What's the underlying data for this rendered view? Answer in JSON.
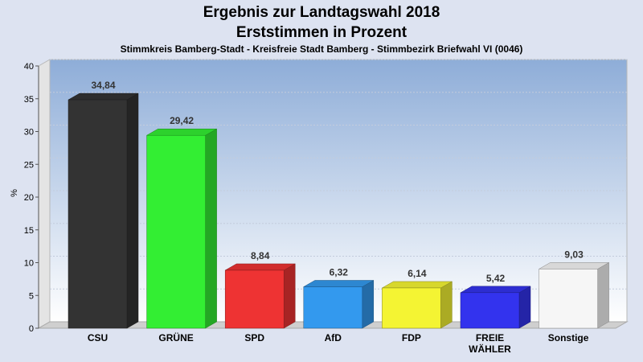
{
  "title_line1": "Ergebnis zur Landtagswahl 2018",
  "title_line2": "Erststimmen in Prozent",
  "subtitle": "Stimmkreis Bamberg-Stadt - Kreisfreie Stadt Bamberg - Stimmbezirk Briefwahl VI (0046)",
  "chart_data": {
    "type": "bar",
    "title": "Ergebnis zur Landtagswahl 2018 - Erststimmen in Prozent",
    "subtitle": "Stimmkreis Bamberg-Stadt - Kreisfreie Stadt Bamberg - Stimmbezirk Briefwahl VI (0046)",
    "ylabel": "%",
    "xlabel": "",
    "ylim": [
      0,
      40
    ],
    "yticks": [
      0,
      5,
      10,
      15,
      20,
      25,
      30,
      35,
      40
    ],
    "grid": true,
    "categories": [
      "CSU",
      "GRÜNE",
      "SPD",
      "AfD",
      "FDP",
      "FREIE WÄHLER",
      "Sonstige"
    ],
    "category_labels": [
      [
        "CSU"
      ],
      [
        "GRÜNE"
      ],
      [
        "SPD"
      ],
      [
        "AfD"
      ],
      [
        "FDP"
      ],
      [
        "FREIE",
        "WÄHLER"
      ],
      [
        "Sonstige"
      ]
    ],
    "values": [
      34.84,
      29.42,
      8.84,
      6.32,
      6.14,
      5.42,
      9.03
    ],
    "value_labels": [
      "34,84",
      "29,42",
      "8,84",
      "6,32",
      "6,14",
      "5,42",
      "9,03"
    ],
    "colors": [
      "#333333",
      "#33ee33",
      "#ee3333",
      "#3399ee",
      "#f4f433",
      "#3333ee",
      "#f6f6f6"
    ]
  }
}
